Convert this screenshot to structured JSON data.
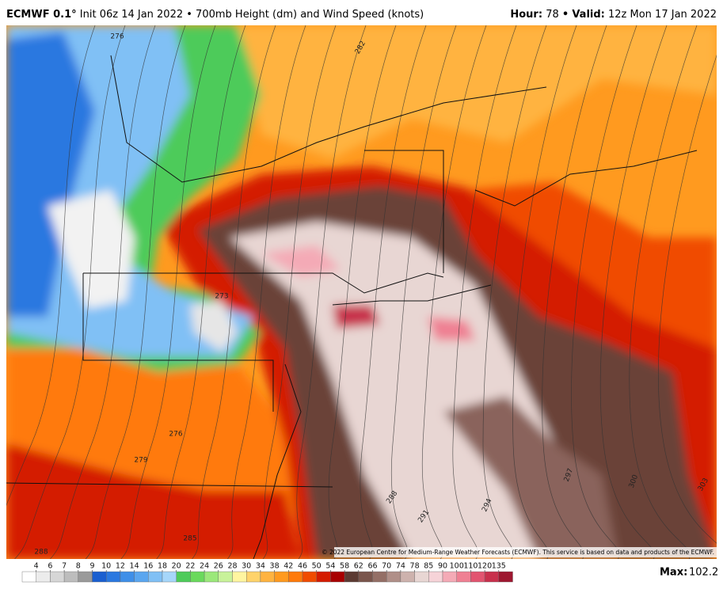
{
  "header": {
    "model": "ECMWF 0.1°",
    "description": "Init 06z 14 Jan 2022 • 700mb Height (dm) and Wind Speed (knots)",
    "hour_label": "Hour:",
    "hour": "78",
    "separator": "•",
    "valid_label": "Valid:",
    "valid": "12z Mon 17 Jan 2022"
  },
  "contour_labels": [
    "276",
    "282",
    "273",
    "276",
    "279",
    "285",
    "288",
    "288",
    "291",
    "294",
    "297",
    "300",
    "303"
  ],
  "copyright": "© 2022 European Centre for Medium-Range Weather Forecasts (ECMWF). This service is based on data and products of the ECMWF.",
  "colorbar": {
    "ticks": [
      4,
      6,
      7,
      8,
      9,
      10,
      12,
      14,
      16,
      18,
      20,
      22,
      24,
      26,
      28,
      30,
      34,
      38,
      42,
      46,
      50,
      54,
      58,
      62,
      66,
      70,
      74,
      78,
      85,
      90,
      100,
      110,
      120,
      135
    ],
    "colors": [
      "#ffffff",
      "#ececec",
      "#d6d6d6",
      "#bdbdbd",
      "#9a9a9a",
      "#1a5fd0",
      "#2a78e0",
      "#3f8fe8",
      "#5aa6ef",
      "#80c0f5",
      "#a6d6fa",
      "#4ecb5a",
      "#6ad95c",
      "#9be87a",
      "#c8f29a",
      "#fff5a0",
      "#ffd36b",
      "#ffb340",
      "#ff9a1f",
      "#ff7a0a",
      "#f04c00",
      "#d41c00",
      "#a80000",
      "#5c3a32",
      "#7a554c",
      "#946f66",
      "#b08f88",
      "#cdb2ad",
      "#e8d6d3",
      "#f6d3d8",
      "#f4aab6",
      "#ef8093",
      "#e25470",
      "#c8304c",
      "#9e1730"
    ]
  },
  "max": {
    "label": "Max:",
    "value": 102.2
  }
}
